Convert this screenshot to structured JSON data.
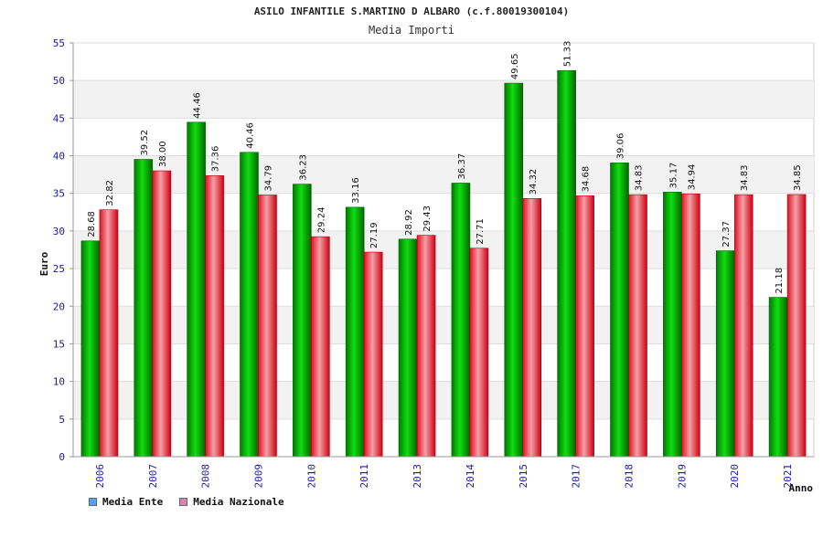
{
  "chart_data": {
    "type": "bar",
    "title": "ASILO INFANTILE S.MARTINO D ALBARO (c.f.80019300104)",
    "subtitle": "Media Importi",
    "xlabel": "Anno",
    "ylabel": "Euro",
    "ylim": [
      0,
      55
    ],
    "yticks": [
      "0",
      "5",
      "10",
      "15",
      "20",
      "25",
      "30",
      "35",
      "40",
      "45",
      "50",
      "55"
    ],
    "categories": [
      "2006",
      "2007",
      "2008",
      "2009",
      "2010",
      "2011",
      "2013",
      "2014",
      "2015",
      "2017",
      "2018",
      "2019",
      "2020",
      "2021"
    ],
    "series": [
      {
        "name": "Media Ente",
        "color": "#00b800",
        "legend_color": "#5aa0ea",
        "values": [
          28.68,
          39.52,
          44.46,
          40.46,
          36.23,
          33.16,
          28.92,
          36.37,
          49.65,
          51.33,
          39.06,
          35.17,
          27.37,
          21.18
        ],
        "labels": [
          "28.68",
          "39.52",
          "44.46",
          "40.46",
          "36.23",
          "33.16",
          "28.92",
          "36.37",
          "49.65",
          "51.33",
          "39.06",
          "35.17",
          "27.37",
          "21.18"
        ]
      },
      {
        "name": "Media Nazionale",
        "color": "#ee1122",
        "legend_color": "#e080b0",
        "values": [
          32.82,
          38.0,
          37.36,
          34.79,
          29.24,
          27.19,
          29.43,
          27.71,
          34.32,
          34.68,
          34.83,
          34.94,
          34.83,
          34.85
        ],
        "labels": [
          "32.82",
          "38.00",
          "37.36",
          "34.79",
          "29.24",
          "27.19",
          "29.43",
          "27.71",
          "34.32",
          "34.68",
          "34.83",
          "34.94",
          "34.83",
          "34.85"
        ]
      }
    ],
    "grid": true,
    "legend_position": "bottom-left"
  }
}
